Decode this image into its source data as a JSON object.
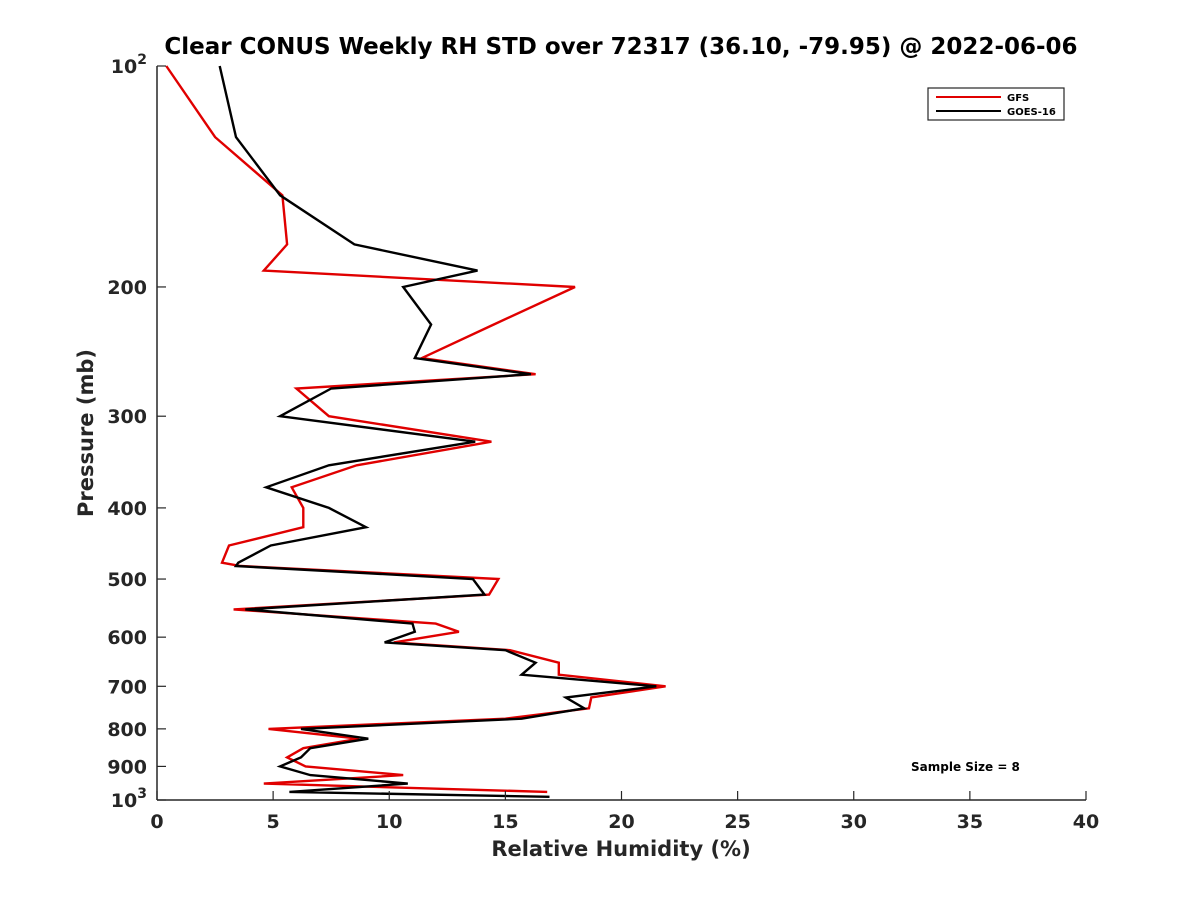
{
  "chart_data": {
    "type": "line",
    "title": "Clear CONUS Weekly RH STD over 72317 (36.10, -79.95) @ 2022-06-06",
    "xlabel": "Relative Humidity (%)",
    "ylabel": "Pressure (mb)",
    "xlim": [
      0,
      40
    ],
    "ylim": [
      100,
      1000
    ],
    "yscale": "log",
    "y_reversed": true,
    "grid": false,
    "legend_position": "top-right",
    "x_ticks": [
      "0",
      "5",
      "10",
      "15",
      "20",
      "25",
      "30",
      "35",
      "40"
    ],
    "x_tick_values": [
      0,
      5,
      10,
      15,
      20,
      25,
      30,
      35,
      40
    ],
    "y_ticks": [
      {
        "value": 100,
        "base": "10",
        "exp": "2"
      },
      {
        "value": 200,
        "label": "200"
      },
      {
        "value": 300,
        "label": "300"
      },
      {
        "value": 400,
        "label": "400"
      },
      {
        "value": 500,
        "label": "500"
      },
      {
        "value": 600,
        "label": "600"
      },
      {
        "value": 700,
        "label": "700"
      },
      {
        "value": 800,
        "label": "800"
      },
      {
        "value": 900,
        "label": "900"
      },
      {
        "value": 1000,
        "base": "10",
        "exp": "3"
      }
    ],
    "annotation": "Sample Size = 8",
    "series": [
      {
        "name": "GFS",
        "color": "#e00000",
        "points": [
          [
            0.4,
            100
          ],
          [
            2.5,
            125
          ],
          [
            5.4,
            150
          ],
          [
            5.6,
            175
          ],
          [
            4.6,
            190
          ],
          [
            18.0,
            200
          ],
          [
            14.5,
            225
          ],
          [
            11.4,
            250
          ],
          [
            16.3,
            263
          ],
          [
            6.0,
            275
          ],
          [
            7.4,
            300
          ],
          [
            14.4,
            325
          ],
          [
            8.6,
            350
          ],
          [
            5.8,
            375
          ],
          [
            6.3,
            400
          ],
          [
            6.3,
            425
          ],
          [
            3.1,
            450
          ],
          [
            2.8,
            475
          ],
          [
            3.6,
            480
          ],
          [
            14.7,
            500
          ],
          [
            14.3,
            525
          ],
          [
            3.3,
            550
          ],
          [
            12.0,
            575
          ],
          [
            13.0,
            590
          ],
          [
            10.2,
            610
          ],
          [
            15.2,
            625
          ],
          [
            17.3,
            650
          ],
          [
            17.3,
            675
          ],
          [
            21.9,
            700
          ],
          [
            18.7,
            725
          ],
          [
            18.6,
            750
          ],
          [
            15.0,
            775
          ],
          [
            4.8,
            800
          ],
          [
            8.7,
            825
          ],
          [
            6.3,
            850
          ],
          [
            5.6,
            875
          ],
          [
            6.4,
            900
          ],
          [
            10.6,
            925
          ],
          [
            4.6,
            950
          ],
          [
            16.8,
            975
          ]
        ]
      },
      {
        "name": "GOES-16",
        "color": "#000000",
        "points": [
          [
            2.7,
            100
          ],
          [
            3.4,
            125
          ],
          [
            5.3,
            150
          ],
          [
            8.5,
            175
          ],
          [
            13.8,
            190
          ],
          [
            10.6,
            200
          ],
          [
            11.8,
            225
          ],
          [
            11.1,
            250
          ],
          [
            16.1,
            263
          ],
          [
            7.5,
            275
          ],
          [
            5.3,
            300
          ],
          [
            13.7,
            325
          ],
          [
            7.4,
            350
          ],
          [
            4.7,
            375
          ],
          [
            7.4,
            400
          ],
          [
            9.0,
            425
          ],
          [
            4.9,
            450
          ],
          [
            3.5,
            475
          ],
          [
            3.4,
            480
          ],
          [
            13.6,
            500
          ],
          [
            14.1,
            525
          ],
          [
            3.8,
            550
          ],
          [
            11.0,
            575
          ],
          [
            11.1,
            590
          ],
          [
            9.8,
            610
          ],
          [
            15.0,
            625
          ],
          [
            16.3,
            650
          ],
          [
            15.7,
            675
          ],
          [
            21.5,
            700
          ],
          [
            17.6,
            725
          ],
          [
            18.4,
            750
          ],
          [
            15.7,
            775
          ],
          [
            6.2,
            800
          ],
          [
            9.1,
            825
          ],
          [
            6.6,
            850
          ],
          [
            6.2,
            875
          ],
          [
            5.3,
            900
          ],
          [
            6.6,
            925
          ],
          [
            10.8,
            950
          ],
          [
            5.7,
            975
          ],
          [
            16.9,
            990
          ]
        ]
      }
    ]
  }
}
